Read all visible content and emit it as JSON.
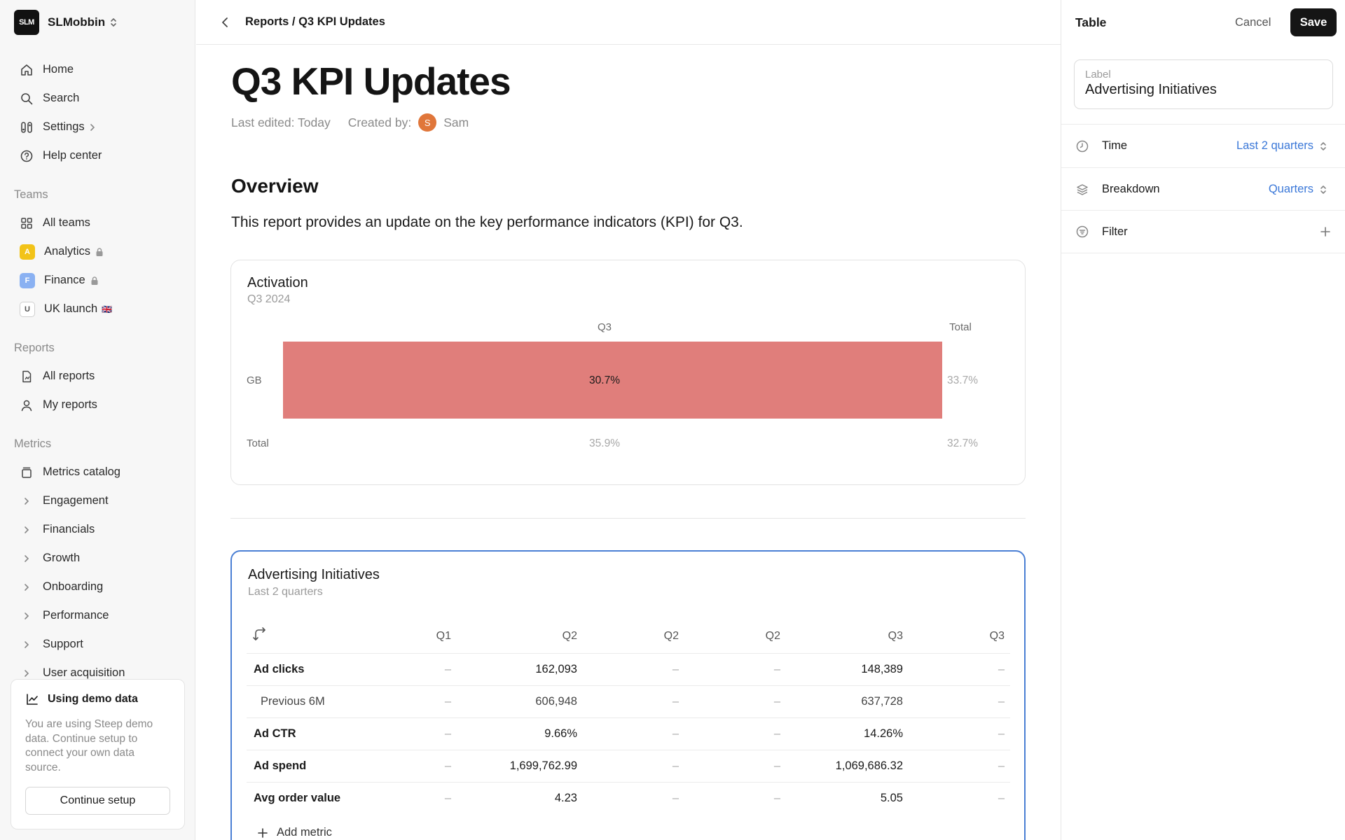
{
  "workspace": {
    "logo_text": "SLM",
    "name": "SLMobbin"
  },
  "nav": {
    "home": "Home",
    "search": "Search",
    "settings": "Settings",
    "help": "Help center"
  },
  "teams": {
    "title": "Teams",
    "all": "All teams",
    "items": [
      {
        "badge": "A",
        "label": "Analytics",
        "color": "#f2c318"
      },
      {
        "badge": "F",
        "label": "Finance",
        "color": "#8ab1f2"
      },
      {
        "badge": "U",
        "label": "UK launch",
        "flag": "🇬🇧"
      }
    ]
  },
  "reports": {
    "title": "Reports",
    "all": "All reports",
    "mine": "My reports"
  },
  "metrics": {
    "title": "Metrics",
    "catalog": "Metrics catalog",
    "groups": [
      "Engagement",
      "Financials",
      "Growth",
      "Onboarding",
      "Performance",
      "Support",
      "User acquisition"
    ]
  },
  "demo": {
    "title": "Using demo data",
    "text": "You are using Steep demo data. Continue setup to connect your own data source.",
    "button": "Continue setup"
  },
  "header": {
    "breadcrumb": "Reports / Q3 KPI Updates"
  },
  "doc": {
    "title": "Q3 KPI Updates",
    "last_edited": "Last edited: Today",
    "created_by_label": "Created by:",
    "author_initial": "S",
    "author": "Sam",
    "overview_heading": "Overview",
    "overview_text": "This report provides an update on the key performance indicators (KPI) for Q3."
  },
  "activation": {
    "title": "Activation",
    "subtitle": "Q3 2024",
    "col_q3": "Q3",
    "col_total": "Total",
    "row_gb": "GB",
    "row_total": "Total",
    "gb_q3": "30.7%",
    "gb_total": "33.7%",
    "total_q3": "35.9%",
    "total_total": "32.7%"
  },
  "chart_data": {
    "type": "bar",
    "categories": [
      "GB"
    ],
    "series": [
      {
        "name": "Q3",
        "values": [
          30.7
        ]
      }
    ],
    "totals": {
      "GB": 33.7
    },
    "column_total": {
      "Q3": 35.9,
      "Total": 32.7
    },
    "title": "Activation",
    "subtitle": "Q3 2024"
  },
  "advertising": {
    "title": "Advertising Initiatives",
    "subtitle": "Last 2 quarters",
    "columns": [
      "Q1",
      "Q2",
      "Q2",
      "Q2",
      "Q3",
      "Q3"
    ],
    "rows": [
      {
        "name": "Ad clicks",
        "values": [
          "–",
          "162,093",
          "–",
          "–",
          "148,389",
          "–"
        ]
      },
      {
        "name": "Previous 6M",
        "values": [
          "–",
          "606,948",
          "–",
          "–",
          "637,728",
          "–"
        ]
      },
      {
        "name": "Ad CTR",
        "values": [
          "–",
          "9.66%",
          "–",
          "–",
          "14.26%",
          "–"
        ]
      },
      {
        "name": "Ad spend",
        "values": [
          "–",
          "1,699,762.99",
          "–",
          "–",
          "1,069,686.32",
          "–"
        ]
      },
      {
        "name": "Avg order value",
        "values": [
          "–",
          "4.23",
          "–",
          "–",
          "5.05",
          "–"
        ]
      }
    ],
    "add_metric": "Add metric"
  },
  "panel": {
    "title": "Table",
    "cancel": "Cancel",
    "save": "Save",
    "label_caption": "Label",
    "label_value": "Advertising Initiatives",
    "time_label": "Time",
    "time_value": "Last 2 quarters",
    "breakdown_label": "Breakdown",
    "breakdown_value": "Quarters",
    "filter_label": "Filter"
  }
}
